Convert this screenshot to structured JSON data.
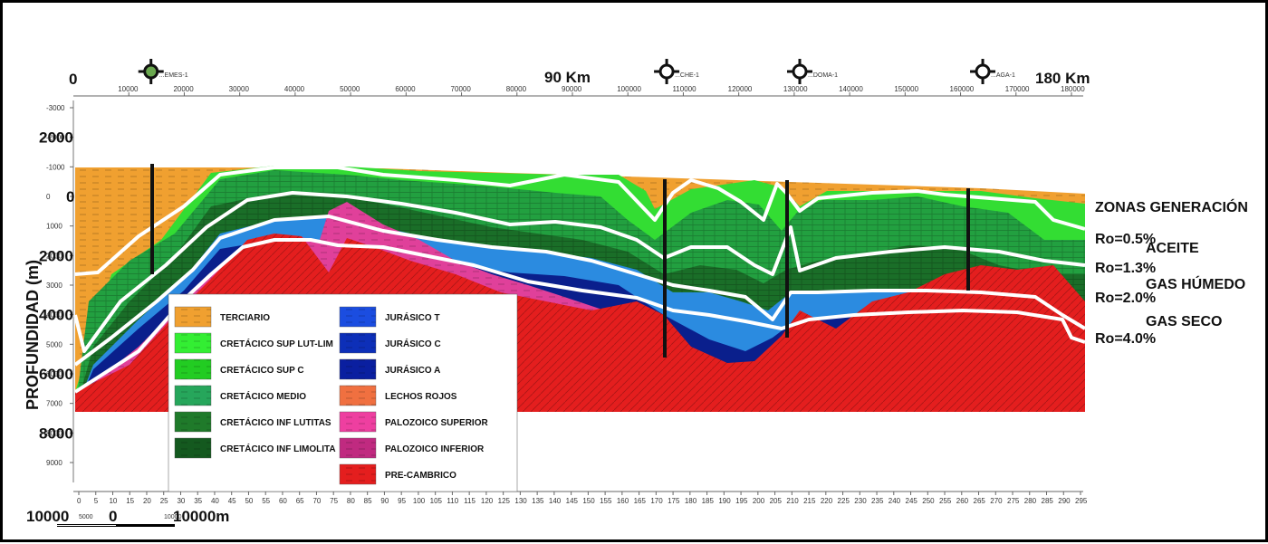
{
  "section": {
    "top_axis": {
      "origin": "0",
      "mid_label": "90 Km",
      "end_label": "180 Km",
      "ticks": [
        "10000",
        "20000",
        "30000",
        "40000",
        "50000",
        "60000",
        "70000",
        "80000",
        "90000",
        "100000",
        "110000",
        "120000",
        "130000",
        "140000",
        "150000",
        "160000",
        "170000",
        "180000"
      ]
    },
    "wells": [
      {
        "label": "...EMES-1",
        "x_km": 14,
        "color": "#6aa84f"
      },
      {
        "label": "...CHE-1",
        "x_km": 107,
        "color": "#ffffff"
      },
      {
        "label": "...DOMA-1",
        "x_km": 131,
        "color": "#ffffff"
      },
      {
        "label": "...AGA-1",
        "x_km": 164,
        "color": "#ffffff"
      }
    ],
    "y_axis": {
      "title": "PROFUNDIDAD (m)",
      "small_ticks": [
        "-3000",
        "-2000",
        "-1000",
        "0",
        "1000",
        "2000",
        "3000",
        "4000",
        "5000",
        "6000",
        "7000",
        "8000",
        "9000"
      ],
      "big_labels": [
        "2000",
        "0",
        "2000",
        "4000",
        "6000",
        "8000"
      ]
    },
    "bottom_axis": {
      "ticks": [
        "0",
        "5",
        "10",
        "15",
        "20",
        "25",
        "30",
        "35",
        "40",
        "45",
        "50",
        "55",
        "60",
        "65",
        "70",
        "75",
        "80",
        "85",
        "90",
        "95",
        "100",
        "105",
        "110",
        "115",
        "120",
        "125",
        "130",
        "135",
        "140",
        "145",
        "150",
        "155",
        "160",
        "165",
        "170",
        "175",
        "180",
        "185",
        "190",
        "195",
        "200",
        "205",
        "210",
        "215",
        "220",
        "225",
        "230",
        "235",
        "240",
        "245",
        "250",
        "255",
        "260",
        "265",
        "270",
        "275",
        "280",
        "285",
        "290",
        "295"
      ]
    },
    "scale_bar": {
      "left": "10000",
      "s1": "5000",
      "mid": "0",
      "s2": "10000",
      "right": "10000m"
    }
  },
  "legend": [
    {
      "label": "TERCIARIO",
      "color": "#f0a030"
    },
    {
      "label": "CRETÁCICO SUP LUT-LIM",
      "color": "#33ee33"
    },
    {
      "label": "CRETÁCICO SUP C",
      "color": "#22cc22"
    },
    {
      "label": "CRETÁCICO MEDIO",
      "color": "#26a65b"
    },
    {
      "label": "CRETÁCICO INF LUTITAS",
      "color": "#1f7a2a"
    },
    {
      "label": "CRETÁCICO INF LIMOLITA",
      "color": "#14591f"
    },
    {
      "label": "JURÁSICO T",
      "color": "#1b4de0"
    },
    {
      "label": "JURÁSICO C",
      "color": "#0d2fb8"
    },
    {
      "label": "JURÁSICO A",
      "color": "#0a1fa0"
    },
    {
      "label": "LECHOS ROJOS",
      "color": "#f07040"
    },
    {
      "label": "PALOZOICO SUPERIOR",
      "color": "#ee3fa0"
    },
    {
      "label": "PALOZOICO INFERIOR",
      "color": "#c02a80"
    },
    {
      "label": "PRE-CAMBRICO",
      "color": "#e41e1e"
    }
  ],
  "zones": {
    "title": "ZONAS GENERACIÓN",
    "ro1": "Ro=0.5%",
    "z1": "ACEITE",
    "ro2": "Ro=1.3%",
    "z2": "GAS HÚMEDO",
    "ro3": "Ro=2.0%",
    "z3": "GAS SECO",
    "ro4": "Ro=4.0%"
  },
  "layer_colors": {
    "terciario": "#f0a030",
    "cret_sup": "#33dd33",
    "cret_medio": "#22a040",
    "cret_inf": "#1a6e28",
    "jur_light": "#2b8be0",
    "jur_dark": "#0a1f8c",
    "palozoico": "#e0409a",
    "precambrico": "#e41e1e"
  }
}
